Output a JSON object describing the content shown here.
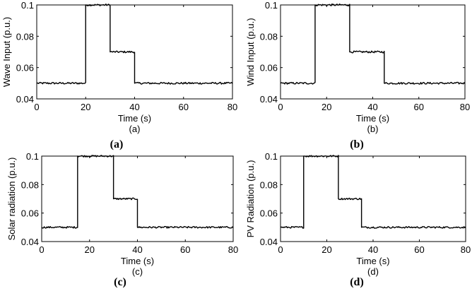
{
  "chart_data": [
    {
      "type": "line",
      "xlabel": "Time (s)",
      "ylabel": "Wave Input (p.u.)",
      "sub_caption": "(a)",
      "caption": "(a)",
      "xlim": [
        0,
        80
      ],
      "ylim": [
        0.04,
        0.1
      ],
      "xticks": [
        "0",
        "20",
        "40",
        "60",
        "80"
      ],
      "yticks": [
        "0.04",
        "0.06",
        "0.08",
        "0.1"
      ],
      "line_color": "#000000",
      "x": [
        0,
        20,
        20,
        30,
        30,
        40,
        40,
        80
      ],
      "y": [
        0.05,
        0.05,
        0.1,
        0.1,
        0.07,
        0.07,
        0.05,
        0.05
      ]
    },
    {
      "type": "line",
      "xlabel": "Time (s)",
      "ylabel": "Wind Input (p.u.)",
      "sub_caption": "(b)",
      "caption": "(b)",
      "xlim": [
        0,
        80
      ],
      "ylim": [
        0.04,
        0.1
      ],
      "xticks": [
        "0",
        "20",
        "40",
        "60",
        "80"
      ],
      "yticks": [
        "0.04",
        "0.06",
        "0.08",
        "0.1"
      ],
      "line_color": "#000000",
      "x": [
        0,
        15,
        15,
        30,
        30,
        45,
        45,
        80
      ],
      "y": [
        0.05,
        0.05,
        0.1,
        0.1,
        0.07,
        0.07,
        0.05,
        0.05
      ]
    },
    {
      "type": "line",
      "xlabel": "Time (s)",
      "ylabel": "Solar radiation (p.u.)",
      "sub_caption": "(c)",
      "caption": "(c)",
      "xlim": [
        0,
        80
      ],
      "ylim": [
        0.04,
        0.1
      ],
      "xticks": [
        "0",
        "20",
        "40",
        "60",
        "80"
      ],
      "yticks": [
        "0.04",
        "0.06",
        "0.08",
        "0.1"
      ],
      "line_color": "#000000",
      "x": [
        0,
        15,
        15,
        30,
        30,
        40,
        40,
        80
      ],
      "y": [
        0.05,
        0.05,
        0.1,
        0.1,
        0.07,
        0.07,
        0.05,
        0.05
      ]
    },
    {
      "type": "line",
      "xlabel": "Time (s)",
      "ylabel": "PV Radiation (p.u.)",
      "sub_caption": "(d)",
      "caption": "(d)",
      "xlim": [
        0,
        80
      ],
      "ylim": [
        0.04,
        0.1
      ],
      "xticks": [
        "0",
        "20",
        "40",
        "60",
        "80"
      ],
      "yticks": [
        "0.04",
        "0.06",
        "0.08",
        "0.1"
      ],
      "line_color": "#000000",
      "x": [
        0,
        10,
        10,
        25,
        25,
        35,
        35,
        80
      ],
      "y": [
        0.05,
        0.05,
        0.1,
        0.1,
        0.07,
        0.07,
        0.05,
        0.05
      ]
    }
  ]
}
